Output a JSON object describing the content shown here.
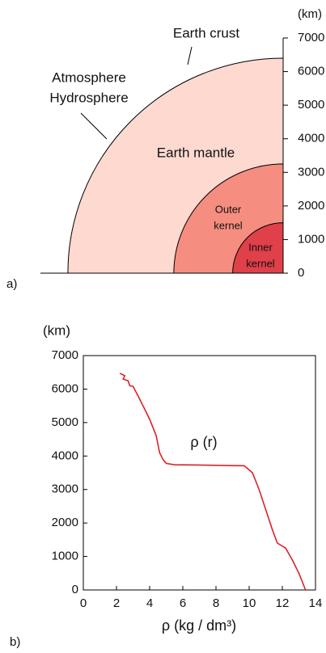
{
  "chart_data": [
    {
      "type": "layers",
      "panel_label": "a)",
      "ylabel": "(km)",
      "ylim": [
        0,
        7000
      ],
      "yticks": [
        0,
        1000,
        2000,
        3000,
        4000,
        5000,
        6000,
        7000
      ],
      "layers": [
        {
          "name": [
            "Earth mantle"
          ],
          "radius": 6400,
          "color": "#fdd9d0"
        },
        {
          "name": [
            "Outer",
            "kernel"
          ],
          "radius": 3250,
          "color": "#f58e80"
        },
        {
          "name": [
            "Inner",
            "kernel"
          ],
          "radius": 1500,
          "color": "#e0404a"
        }
      ],
      "annotations": [
        {
          "text": [
            "Earth crust"
          ]
        },
        {
          "text": [
            "Atmosphere",
            "Hydrosphere"
          ]
        }
      ]
    },
    {
      "type": "line",
      "panel_label": "b)",
      "ylabel": "(km)",
      "xlabel": "ρ (kg / dm³)",
      "xlim": [
        0,
        14
      ],
      "xticks": [
        0,
        2,
        4,
        6,
        8,
        10,
        12,
        14
      ],
      "ylim": [
        0,
        7000
      ],
      "yticks": [
        0,
        1000,
        2000,
        3000,
        4000,
        5000,
        6000,
        7000
      ],
      "x": [
        2.2,
        2.5,
        2.4,
        2.7,
        2.8,
        3.0,
        3.4,
        4.0,
        4.4,
        4.6,
        4.8,
        5.0,
        5.5,
        7.0,
        9.7,
        10.2,
        10.6,
        11.0,
        11.4,
        11.7,
        12.2,
        12.6,
        13.0,
        13.4
      ],
      "series": [
        {
          "name": "ρ (r)",
          "color": "#d8232a",
          "values": [
            6470,
            6400,
            6300,
            6250,
            6100,
            6080,
            5700,
            5100,
            4600,
            4100,
            3900,
            3780,
            3740,
            3730,
            3710,
            3500,
            3000,
            2400,
            1800,
            1400,
            1250,
            900,
            500,
            0
          ]
        }
      ]
    }
  ]
}
